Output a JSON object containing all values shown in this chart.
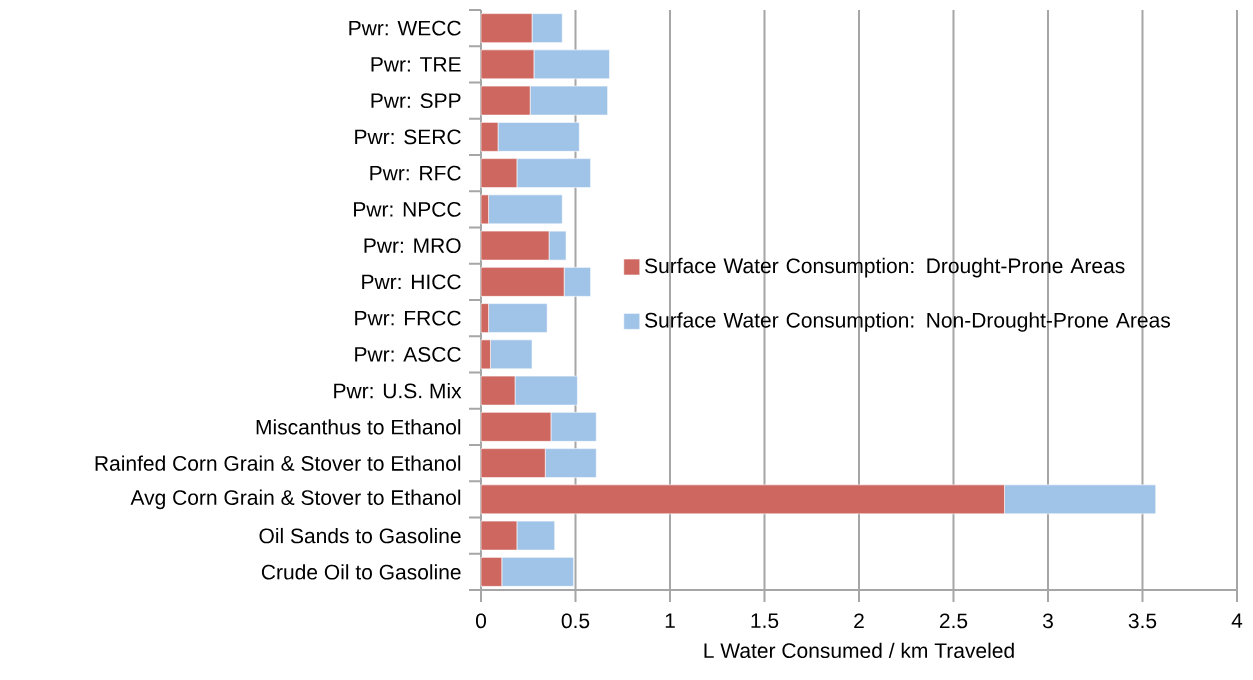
{
  "chart_data": {
    "type": "bar",
    "orientation": "horizontal",
    "stacked": true,
    "categories": [
      "Pwr: WECC",
      "Pwr: TRE",
      "Pwr: SPP",
      "Pwr: SERC",
      "Pwr: RFC",
      "Pwr: NPCC",
      "Pwr: MRO",
      "Pwr: HICC",
      "Pwr: FRCC",
      "Pwr: ASCC",
      "Pwr: U.S. Mix",
      "Miscanthus to Ethanol",
      "Rainfed Corn Grain & Stover to Ethanol",
      "Avg Corn Grain & Stover to Ethanol",
      "Oil Sands to Gasoline",
      "Crude Oil to Gasoline"
    ],
    "series": [
      {
        "name": "Surface Water Consumption: Drought-Prone Areas",
        "color": "#cd6760",
        "values": [
          0.27,
          0.28,
          0.26,
          0.09,
          0.19,
          0.04,
          0.36,
          0.44,
          0.04,
          0.05,
          0.18,
          0.37,
          0.34,
          2.77,
          0.19,
          0.11
        ]
      },
      {
        "name": "Surface Water Consumption: Non-Drought-Prone Areas",
        "color": "#a0c3e8",
        "values": [
          0.16,
          0.4,
          0.41,
          0.43,
          0.39,
          0.39,
          0.09,
          0.14,
          0.31,
          0.22,
          0.33,
          0.24,
          0.27,
          0.8,
          0.2,
          0.38
        ]
      }
    ],
    "xlabel": "L Water Consumed / km Traveled",
    "xlim": [
      0,
      4
    ],
    "xticks": [
      0,
      0.5,
      1,
      1.5,
      2,
      2.5,
      3,
      3.5,
      4
    ],
    "grid": "x",
    "legend": "right"
  }
}
